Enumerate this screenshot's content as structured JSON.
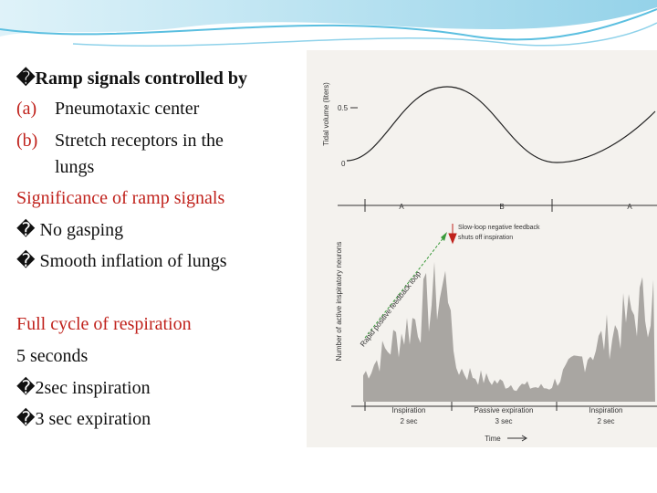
{
  "slide": {
    "heading": "�Ramp signals controlled by",
    "controls": [
      {
        "marker": "(a)",
        "text": "Pneumotaxic center"
      },
      {
        "marker": "(b)",
        "text": "Stretch receptors in the lungs"
      }
    ],
    "significance": {
      "title": "Significance of ramp signals",
      "points": [
        "� No gasping",
        "� Smooth inflation of lungs"
      ]
    },
    "cycle": {
      "title": "Full cycle of respiration",
      "duration": "5 seconds",
      "points": [
        "�2sec inspiration",
        "�3 sec expiration"
      ]
    }
  },
  "figure": {
    "top_axis_label": "Tidal volume (liters)",
    "top_ticks": [
      "0.5",
      "0"
    ],
    "phases": [
      "A",
      "B",
      "A"
    ],
    "feedback_note": [
      "Slow-loop negative feedback",
      "shuts off inspiration"
    ],
    "ramp_note": "Rapid positive feedback loop",
    "bottom_axis_label": "Number of active inspiratory neurons",
    "segments": [
      {
        "name": "Inspiration",
        "duration": "2 sec"
      },
      {
        "name": "Passive expiration",
        "duration": "3 sec"
      },
      {
        "name": "Inspiration",
        "duration": "2 sec"
      }
    ],
    "time_label": "Time"
  }
}
